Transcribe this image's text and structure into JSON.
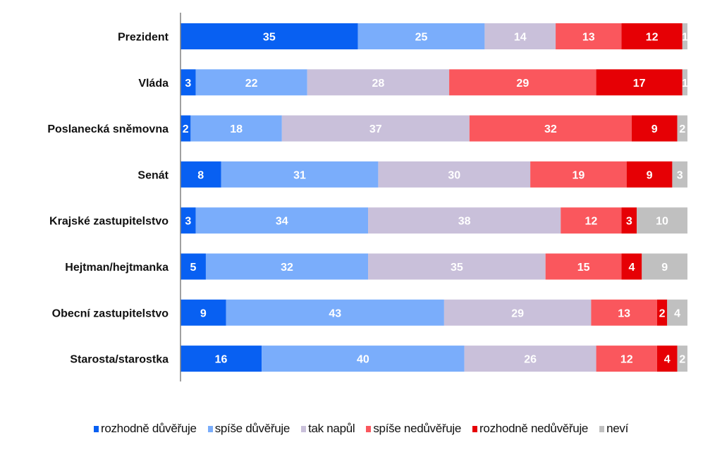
{
  "chart_data": {
    "type": "bar",
    "orientation": "horizontal",
    "stacked": true,
    "title": "",
    "xlabel": "",
    "ylabel": "",
    "xlim": [
      0,
      100
    ],
    "grid": false,
    "legend_position": "bottom",
    "categories": [
      "Prezident",
      "Vláda",
      "Poslanecká sněmovna",
      "Senát",
      "Krajské zastupitelstvo",
      "Hejtman/hejtmanka",
      "Obecní zastupitelstvo",
      "Starosta/starostka"
    ],
    "series": [
      {
        "name": "rozhodně důvěřuje",
        "color": "#0860F2",
        "values": [
          35,
          3,
          2,
          8,
          3,
          5,
          9,
          16
        ]
      },
      {
        "name": "spíše důvěřuje",
        "color": "#7AADFB",
        "values": [
          25,
          22,
          18,
          31,
          34,
          32,
          43,
          40
        ]
      },
      {
        "name": "tak napůl",
        "color": "#C9C0DA",
        "values": [
          14,
          28,
          37,
          30,
          38,
          35,
          29,
          26
        ]
      },
      {
        "name": "spíše nedůvěřuje",
        "color": "#FA575D",
        "values": [
          13,
          29,
          32,
          19,
          12,
          15,
          13,
          12
        ]
      },
      {
        "name": "rozhodně nedůvěřuje",
        "color": "#E60005",
        "values": [
          12,
          17,
          9,
          9,
          3,
          4,
          2,
          4
        ]
      },
      {
        "name": "neví",
        "color": "#C0C0C0",
        "values": [
          1,
          1,
          2,
          3,
          10,
          9,
          4,
          2
        ]
      }
    ]
  }
}
